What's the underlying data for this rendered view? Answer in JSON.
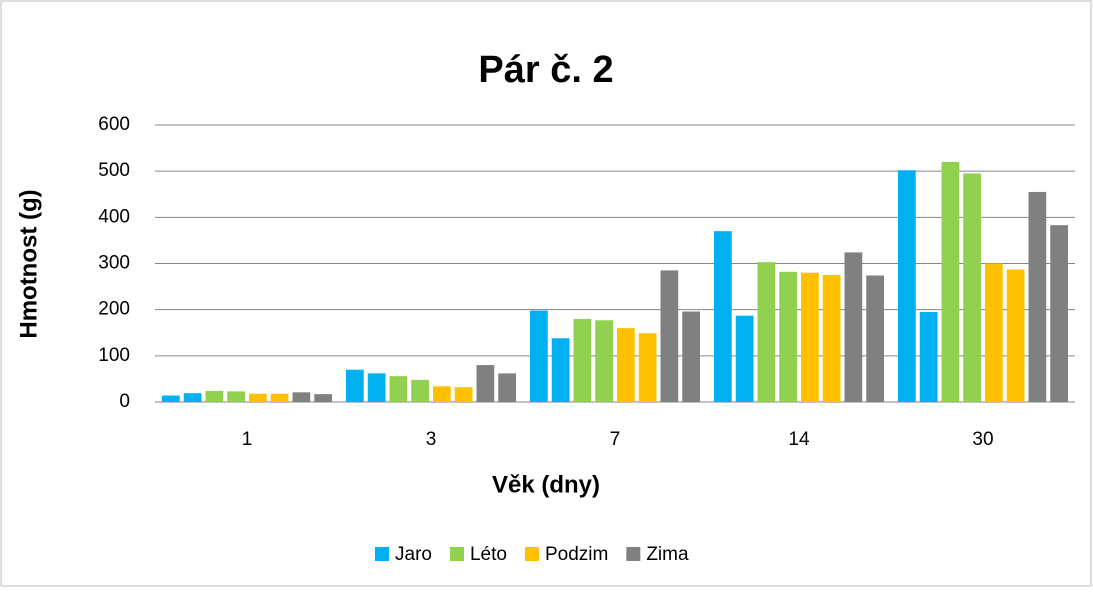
{
  "chart_data": {
    "type": "bar",
    "title": "Pár č. 2",
    "xlabel": "Věk (dny)",
    "ylabel": "Hmotnost (g)",
    "categories": [
      "1",
      "3",
      "7",
      "14",
      "30"
    ],
    "series": [
      {
        "name": "Jaro",
        "color": "#00b0f0",
        "values": [
          [
            14,
            19
          ],
          [
            70,
            62
          ],
          [
            198,
            138
          ],
          [
            370,
            187
          ],
          [
            502,
            195
          ]
        ]
      },
      {
        "name": "Léto",
        "color": "#92d050",
        "values": [
          [
            24,
            23
          ],
          [
            56,
            48
          ],
          [
            180,
            177
          ],
          [
            303,
            282
          ],
          [
            520,
            495
          ]
        ]
      },
      {
        "name": "Podzim",
        "color": "#ffc000",
        "values": [
          [
            18,
            18
          ],
          [
            34,
            32
          ],
          [
            160,
            149
          ],
          [
            280,
            275
          ],
          [
            300,
            287
          ]
        ]
      },
      {
        "name": "Zima",
        "color": "#808080",
        "values": [
          [
            21,
            17
          ],
          [
            80,
            62
          ],
          [
            285,
            196
          ],
          [
            324,
            274
          ],
          [
            455,
            383
          ]
        ]
      }
    ],
    "ylim": [
      0,
      600
    ],
    "yticks": [
      0,
      100,
      200,
      300,
      400,
      500,
      600
    ],
    "grid": true,
    "legend": "bottom"
  }
}
